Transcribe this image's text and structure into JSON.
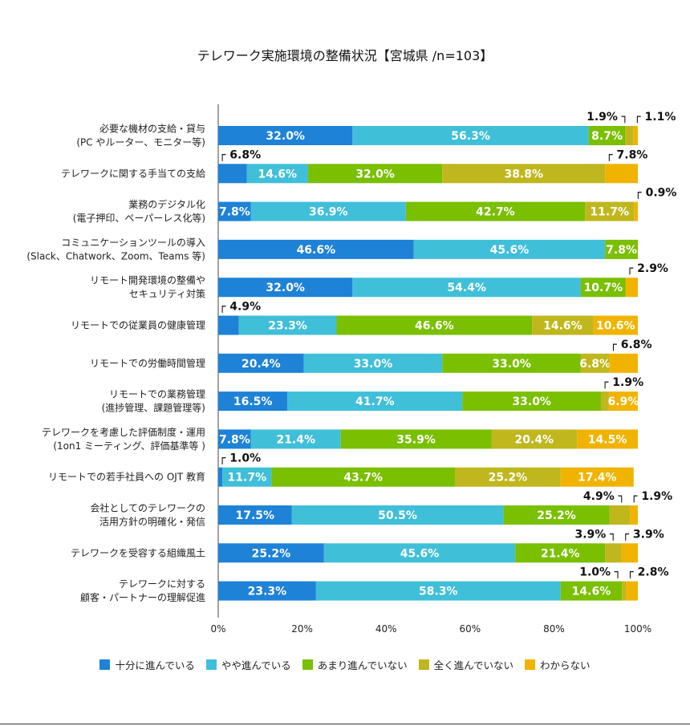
{
  "chart_data": {
    "type": "bar",
    "orientation": "horizontal-stacked-100",
    "title": "テレワーク実施環境の整備状況【宮城県 /n=103】",
    "xlabel": "",
    "ylabel": "",
    "xlim": [
      0,
      100
    ],
    "x_ticks": [
      "0%",
      "20%",
      "40%",
      "60%",
      "80%",
      "100%"
    ],
    "legend_position": "bottom",
    "categories": [
      [
        "必要な機材の支給・貸与",
        "(PC やルーター、モニター等)"
      ],
      [
        "テレワークに関する手当ての支給"
      ],
      [
        "業務のデジタル化",
        "(電子押印、ペーパーレス化等)"
      ],
      [
        "コミュニケーションツールの導入",
        "(Slack、Chatwork、Zoom、Teams 等)"
      ],
      [
        "リモート開発環境の整備や",
        "セキュリティ対策"
      ],
      [
        "リモートでの従業員の健康管理"
      ],
      [
        "リモートでの労働時間管理"
      ],
      [
        "リモートでの業務管理",
        "(進捗管理、課題管理等)"
      ],
      [
        "テレワークを考慮した評価制度・運用",
        "(1on1 ミーティング、評価基準等 )"
      ],
      [
        "リモートでの若手社員への OJT 教育"
      ],
      [
        "会社としてのテレワークの",
        "活用方針の明確化・発信"
      ],
      [
        "テレワークを受容する組織風土"
      ],
      [
        "テレワークに対する",
        "顧客・パートナーの理解促進"
      ]
    ],
    "series": [
      {
        "name": "十分に進んでいる",
        "color": "#1e82d7",
        "values": [
          32.0,
          6.8,
          7.8,
          46.6,
          32.0,
          4.9,
          20.4,
          16.5,
          7.8,
          1.0,
          17.5,
          25.2,
          23.3
        ]
      },
      {
        "name": "やや進んでいる",
        "color": "#40bfd9",
        "values": [
          56.3,
          14.6,
          36.9,
          45.6,
          54.4,
          23.3,
          33.0,
          41.7,
          21.4,
          11.7,
          50.5,
          45.6,
          58.3
        ]
      },
      {
        "name": "あまり進んでいない",
        "color": "#7abf00",
        "values": [
          8.7,
          32.0,
          42.7,
          7.8,
          10.7,
          46.6,
          33.0,
          33.0,
          35.9,
          43.7,
          25.2,
          21.4,
          14.6
        ]
      },
      {
        "name": "全く進んでいない",
        "color": "#bfb71d",
        "values": [
          1.9,
          38.8,
          11.7,
          0,
          0,
          14.6,
          6.8,
          1.9,
          20.4,
          25.2,
          4.9,
          3.9,
          1.0
        ]
      },
      {
        "name": "わからない",
        "color": "#f0b400",
        "values": [
          1.1,
          7.8,
          0.9,
          0,
          2.9,
          10.6,
          6.8,
          6.9,
          14.5,
          17.4,
          1.9,
          3.9,
          2.8
        ]
      }
    ],
    "outside_labels": [
      [
        3,
        4
      ],
      [
        0,
        4
      ],
      [
        4
      ],
      [],
      [
        4
      ],
      [
        0
      ],
      [
        4
      ],
      [
        3
      ],
      [],
      [
        0
      ],
      [
        3,
        4
      ],
      [
        3,
        4
      ],
      [
        3,
        4
      ]
    ]
  }
}
